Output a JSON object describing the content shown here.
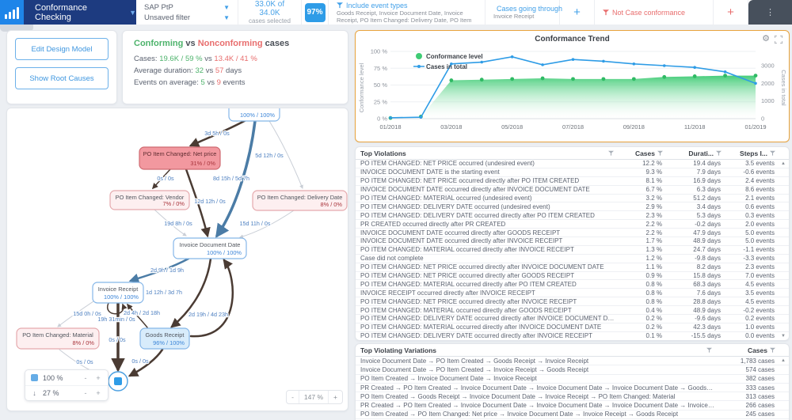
{
  "topbar": {
    "app_title": "Conformance Checking",
    "model_selector": {
      "value": "SAP PtP"
    },
    "filter_selector": {
      "value": "Unsaved filter"
    },
    "selection": {
      "value": "33.0K of 34.0K",
      "label": "cases selected"
    },
    "conformance_badge": "97%",
    "filter_chips": [
      {
        "title": "Include event types",
        "subtitle": "Goods Receipt, Invoice Document Date, Invoice Receipt, PO Item Changed: Delivery Date, PO Item Changed: Material,"
      },
      {
        "title": "Cases going through",
        "subtitle": "Invoice Receipt"
      }
    ],
    "add_filter_label": "+",
    "violation_chip": {
      "title": "Not Case conformance"
    },
    "add_violation_label": "+",
    "menu_icon": "⋮"
  },
  "left_panel": {
    "buttons": [
      {
        "label": "Edit Design Model"
      },
      {
        "label": "Show Root Causes"
      }
    ]
  },
  "stats": {
    "title": {
      "conforming": "Conforming",
      "vs": "vs",
      "nonconforming": "Nonconforming",
      "suffix": "cases"
    },
    "rows": [
      {
        "label": "Cases:",
        "good": "19.6K / 59 %",
        "vs": "vs",
        "bad": "13.4K / 41 %",
        "suffix": ""
      },
      {
        "label": "Average duration:",
        "good": "32",
        "vs": "vs",
        "bad": "57",
        "suffix": "days"
      },
      {
        "label": "Events on average:",
        "good": "5",
        "vs": "vs",
        "bad": "9",
        "suffix": "events"
      }
    ]
  },
  "process_map": {
    "nodes": [
      {
        "id": "po_created",
        "label": "PO Item Created",
        "pct": "100% / 100%",
        "type": "conform"
      },
      {
        "id": "net_price",
        "label": "PO Item Changed: Net price",
        "pct": "31% / 0%",
        "type": "violation-strong"
      },
      {
        "id": "vendor",
        "label": "PO Item Changed: Vendor",
        "pct": "7% / 0%",
        "type": "violation-light"
      },
      {
        "id": "delivery",
        "label": "PO Item Changed: Delivery Date",
        "pct": "8% / 0%",
        "type": "violation-light"
      },
      {
        "id": "idd",
        "label": "Invoice Document Date",
        "pct": "100% / 100%",
        "type": "conform"
      },
      {
        "id": "ir",
        "label": "Invoice Receipt",
        "pct": "100% / 100%",
        "type": "conform"
      },
      {
        "id": "material",
        "label": "PO Item Changed: Material",
        "pct": "8% / 0%",
        "type": "violation-light"
      },
      {
        "id": "goods",
        "label": "Goods Receipt",
        "pct": "96% / 100%",
        "type": "conform-fill"
      }
    ],
    "edges": [
      {
        "from": "po_created",
        "to": "net_price",
        "label": "3d 5h / 0s",
        "style": "dark",
        "w": 2.5
      },
      {
        "from": "po_created",
        "to": "delivery",
        "label": "5d 12h / 0s",
        "style": "light",
        "w": 1
      },
      {
        "from": "po_created",
        "to": "idd",
        "label": "8d 15h / 5d 7h",
        "style": "blue",
        "w": 3.5
      },
      {
        "from": "net_price",
        "to": "vendor",
        "label": "0s / 0s",
        "style": "dark",
        "w": 1.5
      },
      {
        "from": "net_price",
        "to": "idd",
        "label": "12d 12h / 0s",
        "style": "dark",
        "w": 2.5
      },
      {
        "from": "vendor",
        "to": "idd",
        "label": "19d 8h / 0s",
        "style": "light",
        "w": 1
      },
      {
        "from": "delivery",
        "to": "idd",
        "label": "15d 11h / 0s",
        "style": "light",
        "w": 1
      },
      {
        "from": "idd",
        "to": "ir",
        "label": "2d 9h / 1d 9h",
        "style": "blue",
        "w": 2.5
      },
      {
        "from": "idd",
        "to": "goods",
        "label": "1d 12h / 3d 7h",
        "style": "dark",
        "w": 2.5
      },
      {
        "from": "goods",
        "to": "idd",
        "label": "2d 19h / 4d 23h",
        "style": "dark",
        "w": 2.5
      },
      {
        "from": "ir",
        "to": "material",
        "label": "15d 0h / 0s",
        "style": "light",
        "w": 1
      },
      {
        "from": "ir",
        "to": "ir",
        "label": "19h 31min / 0s",
        "style": "dark",
        "w": 1.5
      },
      {
        "from": "goods",
        "to": "ir",
        "label": "2d 4h / 2d 18h",
        "style": "dark",
        "w": 1.5
      },
      {
        "from": "ir",
        "to": "end",
        "label": "0s / 0s",
        "style": "dark",
        "w": 3.5
      },
      {
        "from": "goods",
        "to": "end",
        "label": "0s / 0s",
        "style": "dark",
        "w": 2.5
      },
      {
        "from": "material",
        "to": "end",
        "label": "0s / 0s",
        "style": "light",
        "w": 1
      }
    ],
    "activity_control": {
      "value": "100 %",
      "minus": "-",
      "plus": "+"
    },
    "connection_control": {
      "value": "27 %",
      "minus": "-",
      "plus": "+"
    },
    "zoom_control": {
      "minus": "-",
      "value": "147 %",
      "plus": "+"
    }
  },
  "chart_data": {
    "type": "area",
    "title": "Conformance Trend",
    "x": [
      "01/2018",
      "02/2018",
      "03/2018",
      "04/2018",
      "05/2018",
      "06/2018",
      "07/2018",
      "08/2018",
      "09/2018",
      "10/2018",
      "11/2018",
      "12/2018",
      "01/2019"
    ],
    "x_tick_labels": [
      "01/2018",
      "03/2018",
      "05/2018",
      "07/2018",
      "09/2018",
      "11/2018",
      "01/2019"
    ],
    "series": [
      {
        "name": "Conformance level",
        "type": "area",
        "color": "#3ecb74",
        "axis": "left",
        "values": [
          1,
          3,
          57,
          58,
          59,
          60,
          59,
          59,
          59,
          62,
          63,
          64,
          64
        ]
      },
      {
        "name": "Cases in total",
        "type": "line",
        "color": "#2e9ce6",
        "axis": "right",
        "values": [
          50,
          80,
          3100,
          3200,
          3500,
          3050,
          3350,
          3250,
          3100,
          3000,
          2900,
          2650,
          2000
        ]
      }
    ],
    "left_axis": {
      "label": "Conformance level",
      "ticks": [
        "0 %",
        "25 %",
        "50 %",
        "75 %",
        "100 %"
      ],
      "min": 0,
      "max": 100
    },
    "right_axis": {
      "label": "Cases in total",
      "ticks": [
        "0",
        "1000",
        "2000",
        "3000"
      ],
      "min": 0,
      "max": 3806
    },
    "legend_position": "top-left"
  },
  "violations_table": {
    "title": "Top Violations",
    "columns": [
      "Cases",
      "Durati...",
      "Steps I..."
    ],
    "rows": [
      [
        "PO ITEM CHANGED: NET PRICE occurred (undesired event)",
        "12.2 %",
        "19.4 days",
        "3.5 events"
      ],
      [
        "INVOICE DOCUMENT DATE is the starting event",
        "9.3 %",
        "7.9 days",
        "-0.6 events"
      ],
      [
        "PO ITEM CHANGED: NET PRICE occurred directly after PO ITEM CREATED",
        "8.1 %",
        "16.9 days",
        "2.4 events"
      ],
      [
        "INVOICE DOCUMENT DATE occurred directly after INVOICE DOCUMENT DATE",
        "6.7 %",
        "6.3 days",
        "8.6 events"
      ],
      [
        "PO ITEM CHANGED: MATERIAL occurred (undesired event)",
        "3.2 %",
        "51.2 days",
        "2.1 events"
      ],
      [
        "PO ITEM CHANGED: DELIVERY DATE occurred (undesired event)",
        "2.9 %",
        "3.4 days",
        "0.6 events"
      ],
      [
        "PO ITEM CHANGED: DELIVERY DATE occurred directly after PO ITEM CREATED",
        "2.3 %",
        "5.3 days",
        "0.3 events"
      ],
      [
        "PR CREATED occurred directly after PR CREATED",
        "2.2 %",
        "-0.2 days",
        "2.0 events"
      ],
      [
        "INVOICE DOCUMENT DATE occurred directly after GOODS RECEIPT",
        "2.2 %",
        "47.9 days",
        "5.0 events"
      ],
      [
        "INVOICE DOCUMENT DATE occurred directly after INVOICE RECEIPT",
        "1.7 %",
        "48.9 days",
        "5.0 events"
      ],
      [
        "PO ITEM CHANGED: MATERIAL occurred directly after INVOICE RECEIPT",
        "1.3 %",
        "24.7 days",
        "-1.1 events"
      ],
      [
        "Case did not complete",
        "1.2 %",
        "-9.8 days",
        "-3.3 events"
      ],
      [
        "PO ITEM CHANGED: NET PRICE occurred directly after INVOICE DOCUMENT DATE",
        "1.1 %",
        "8.2 days",
        "2.3 events"
      ],
      [
        "PO ITEM CHANGED: NET PRICE occurred directly after GOODS RECEIPT",
        "0.9 %",
        "15.8 days",
        "7.0 events"
      ],
      [
        "PO ITEM CHANGED: MATERIAL occurred directly after PO ITEM CREATED",
        "0.8 %",
        "68.3 days",
        "4.5 events"
      ],
      [
        "INVOICE RECEIPT occurred directly after INVOICE RECEIPT",
        "0.8 %",
        "7.6 days",
        "3.5 events"
      ],
      [
        "PO ITEM CHANGED: NET PRICE occurred directly after INVOICE RECEIPT",
        "0.8 %",
        "28.8 days",
        "4.5 events"
      ],
      [
        "PO ITEM CHANGED: MATERIAL occurred directly after GOODS RECEIPT",
        "0.4 %",
        "48.9 days",
        "-0.2 events"
      ],
      [
        "PO ITEM CHANGED: DELIVERY DATE occurred directly after INVOICE DOCUMENT DATE",
        "0.2 %",
        "-9.6 days",
        "0.2 events"
      ],
      [
        "PO ITEM CHANGED: MATERIAL occurred directly after INVOICE DOCUMENT DATE",
        "0.2 %",
        "42.3 days",
        "1.0 events"
      ],
      [
        "PO ITEM CHANGED: DELIVERY DATE occurred directly after INVOICE RECEIPT",
        "0.1 %",
        "-15.5 days",
        "0.0 events"
      ]
    ]
  },
  "variations_table": {
    "title": "Top Violating Variations",
    "column": "Cases",
    "rows": [
      [
        "Invoice Document Date → PO Item Created → Goods Receipt → Invoice Receipt",
        "1,783 cases"
      ],
      [
        "Invoice Document Date → PO Item Created → Invoice Receipt → Goods Receipt",
        "574 cases"
      ],
      [
        "PO Item Created → Invoice Document Date → Invoice Receipt",
        "382 cases"
      ],
      [
        "PR Created → PO Item Created → Invoice Document Date → Invoice Document Date → Invoice Document Date → Goods Receipt → Invoice Receipt → Invoice ...",
        "333 cases"
      ],
      [
        "PO Item Created → Goods Receipt → Invoice Document Date → Invoice Receipt → PO Item Changed: Material",
        "313 cases"
      ],
      [
        "PR Created → PO Item Created → Invoice Document Date → Invoice Document Date → Invoice Document Date → Invoice Document Date → Goods Receipt → ...",
        "266 cases"
      ],
      [
        "PO Item Created → PO Item Changed: Net price → Invoice Document Date → Invoice Receipt → Goods Receipt",
        "245 cases"
      ],
      [
        "PR Created → PO Item Created → PO Item Changed: Net price → Invoice Document Date → Invoice Receipt → Goods Receipt",
        "236 cases"
      ]
    ]
  }
}
